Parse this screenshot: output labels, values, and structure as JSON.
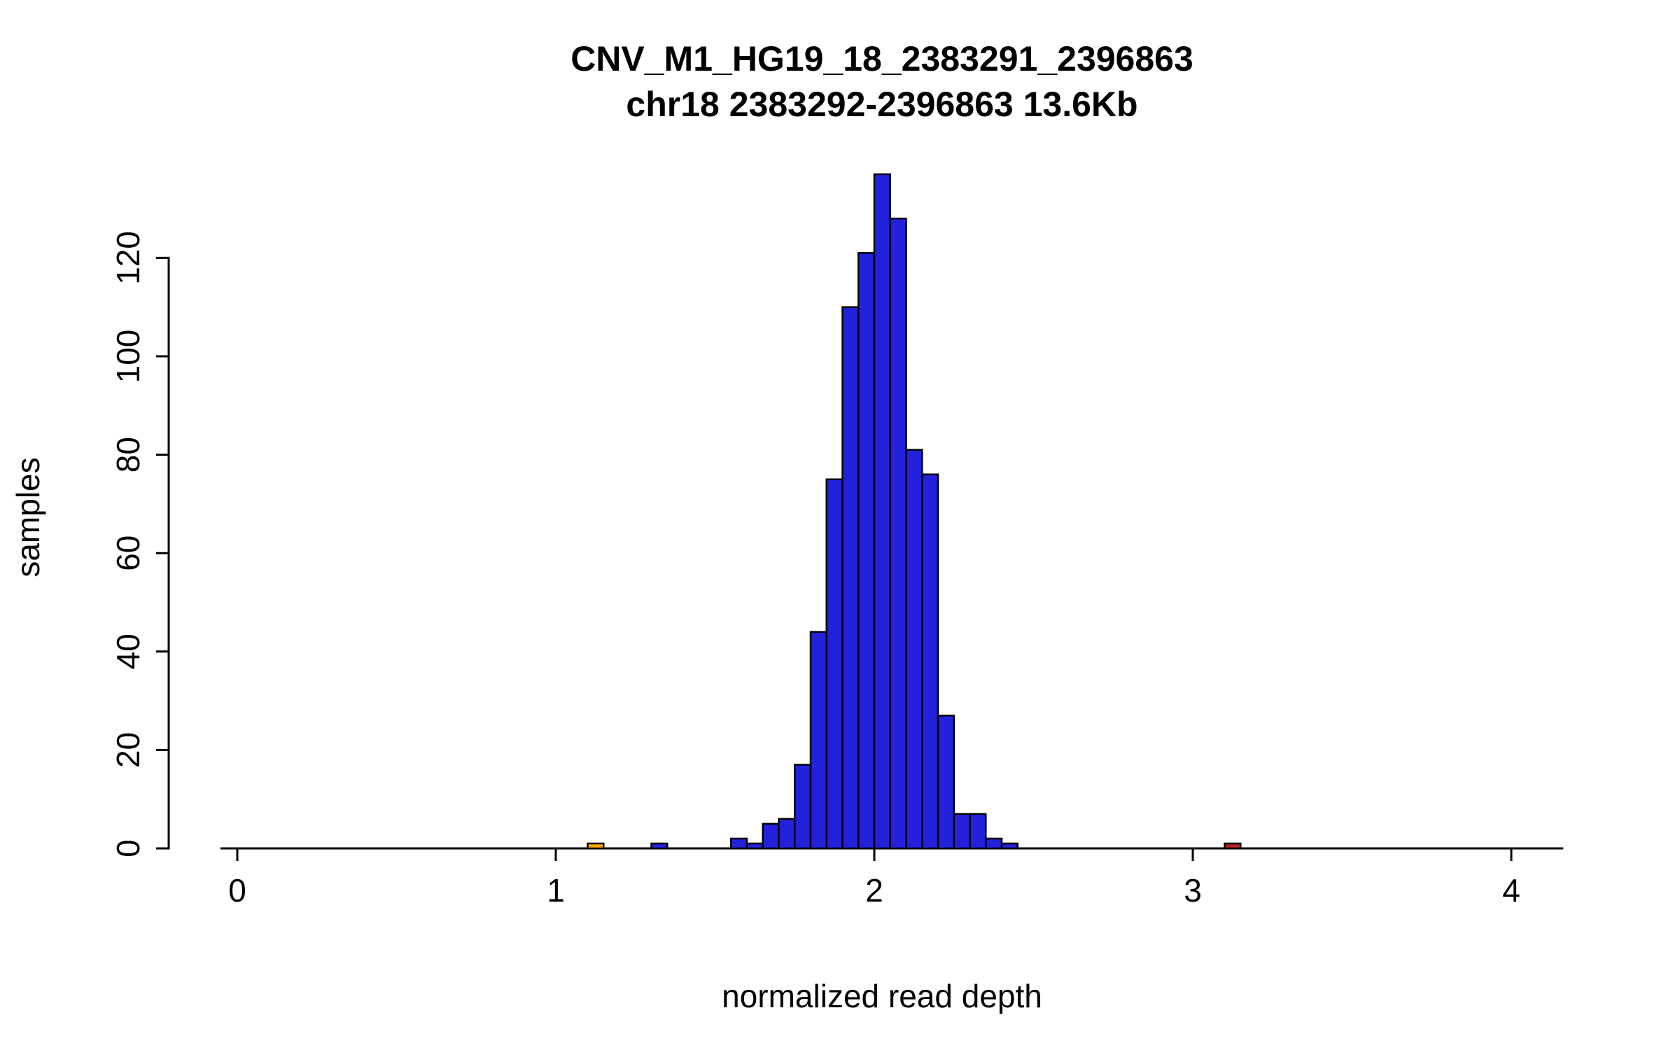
{
  "chart_data": {
    "type": "bar",
    "title": "CNV_M1_HG19_18_2383291_2396863",
    "subtitle": "chr18 2383292-2396863 13.6Kb",
    "xlabel": "normalized read depth",
    "ylabel": "samples",
    "x_ticks": [
      0,
      1,
      2,
      3,
      4
    ],
    "y_ticks": [
      0,
      20,
      40,
      60,
      80,
      100,
      120
    ],
    "xlim": [
      -0.05,
      4.16
    ],
    "ylim": [
      0,
      137
    ],
    "bin_width": 0.05,
    "grid": false,
    "legend": false,
    "colors": {
      "bar_default": "#2222DD",
      "bar_outlier_low": "#FFA500",
      "bar_outlier_high": "#B22222",
      "axis": "#000000",
      "text": "#000000",
      "background": "#FFFFFF"
    },
    "bars": [
      {
        "x": 1.1,
        "count": 1,
        "color": "#FFA500"
      },
      {
        "x": 1.3,
        "count": 1
      },
      {
        "x": 1.55,
        "count": 2
      },
      {
        "x": 1.6,
        "count": 1
      },
      {
        "x": 1.65,
        "count": 5
      },
      {
        "x": 1.7,
        "count": 6
      },
      {
        "x": 1.75,
        "count": 17
      },
      {
        "x": 1.8,
        "count": 44
      },
      {
        "x": 1.85,
        "count": 75
      },
      {
        "x": 1.9,
        "count": 110
      },
      {
        "x": 1.95,
        "count": 121
      },
      {
        "x": 2.0,
        "count": 137
      },
      {
        "x": 2.05,
        "count": 128
      },
      {
        "x": 2.1,
        "count": 81
      },
      {
        "x": 2.15,
        "count": 76
      },
      {
        "x": 2.2,
        "count": 27
      },
      {
        "x": 2.25,
        "count": 7
      },
      {
        "x": 2.3,
        "count": 7
      },
      {
        "x": 2.35,
        "count": 2
      },
      {
        "x": 2.4,
        "count": 1
      },
      {
        "x": 3.1,
        "count": 1,
        "color": "#B22222"
      }
    ]
  }
}
